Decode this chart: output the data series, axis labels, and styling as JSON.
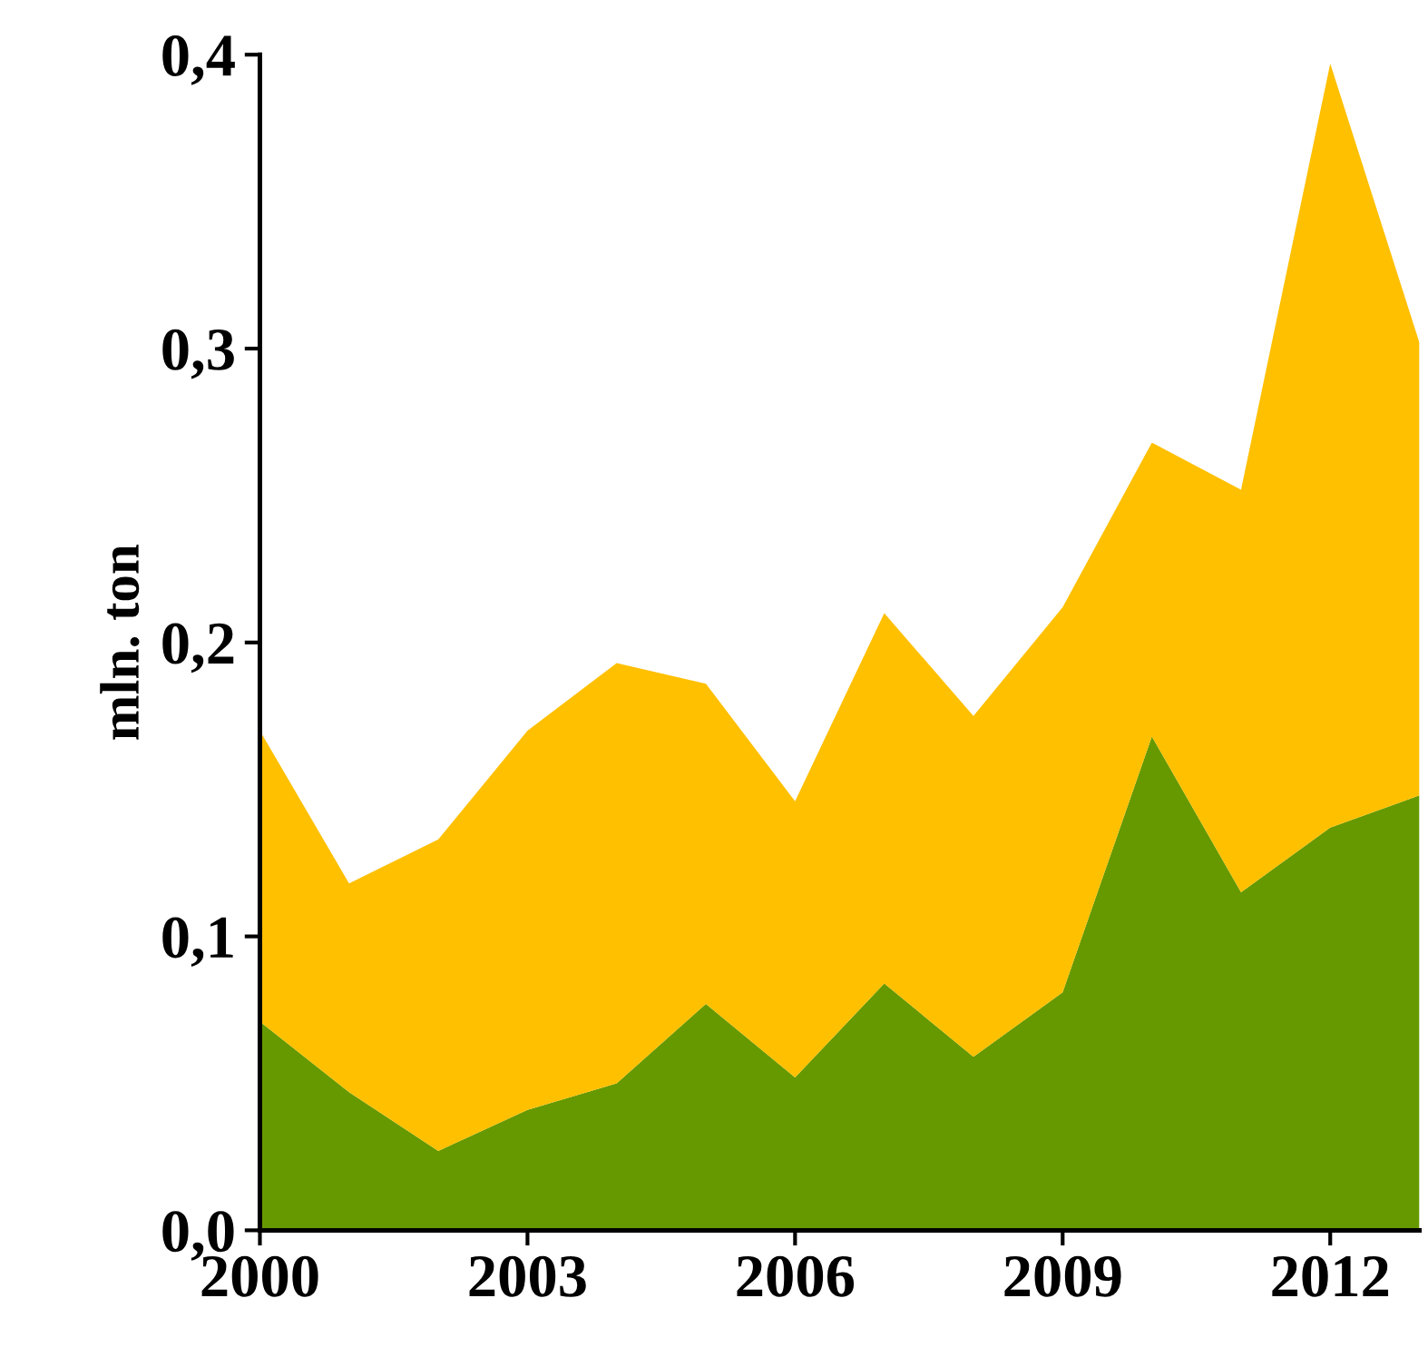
{
  "chart_data": {
    "type": "area",
    "stacked": true,
    "ylabel": "mln. ton",
    "x": [
      2000,
      2001,
      2002,
      2003,
      2004,
      2005,
      2006,
      2007,
      2008,
      2009,
      2010,
      2011,
      2012,
      2013
    ],
    "series": [
      {
        "color": "#669900",
        "values": [
          0.071,
          0.047,
          0.027,
          0.041,
          0.05,
          0.077,
          0.052,
          0.084,
          0.059,
          0.081,
          0.168,
          0.115,
          0.137,
          0.148
        ]
      },
      {
        "color": "#ffc000",
        "values": [
          0.099,
          0.071,
          0.106,
          0.129,
          0.143,
          0.109,
          0.094,
          0.126,
          0.116,
          0.131,
          0.1,
          0.137,
          0.26,
          0.154
        ]
      }
    ],
    "xlim": [
      2000,
      2013
    ],
    "xticks": [
      2000,
      2003,
      2006,
      2009,
      2012
    ],
    "ylim": [
      0,
      0.4
    ],
    "yticks": [
      {
        "value": 0,
        "label": "0,0"
      },
      {
        "value": 0.1,
        "label": "0,1"
      },
      {
        "value": 0.2,
        "label": "0,2"
      },
      {
        "value": 0.3,
        "label": "0,3"
      },
      {
        "value": 0.4,
        "label": "0,4"
      }
    ],
    "grid": false,
    "legend": false
  }
}
